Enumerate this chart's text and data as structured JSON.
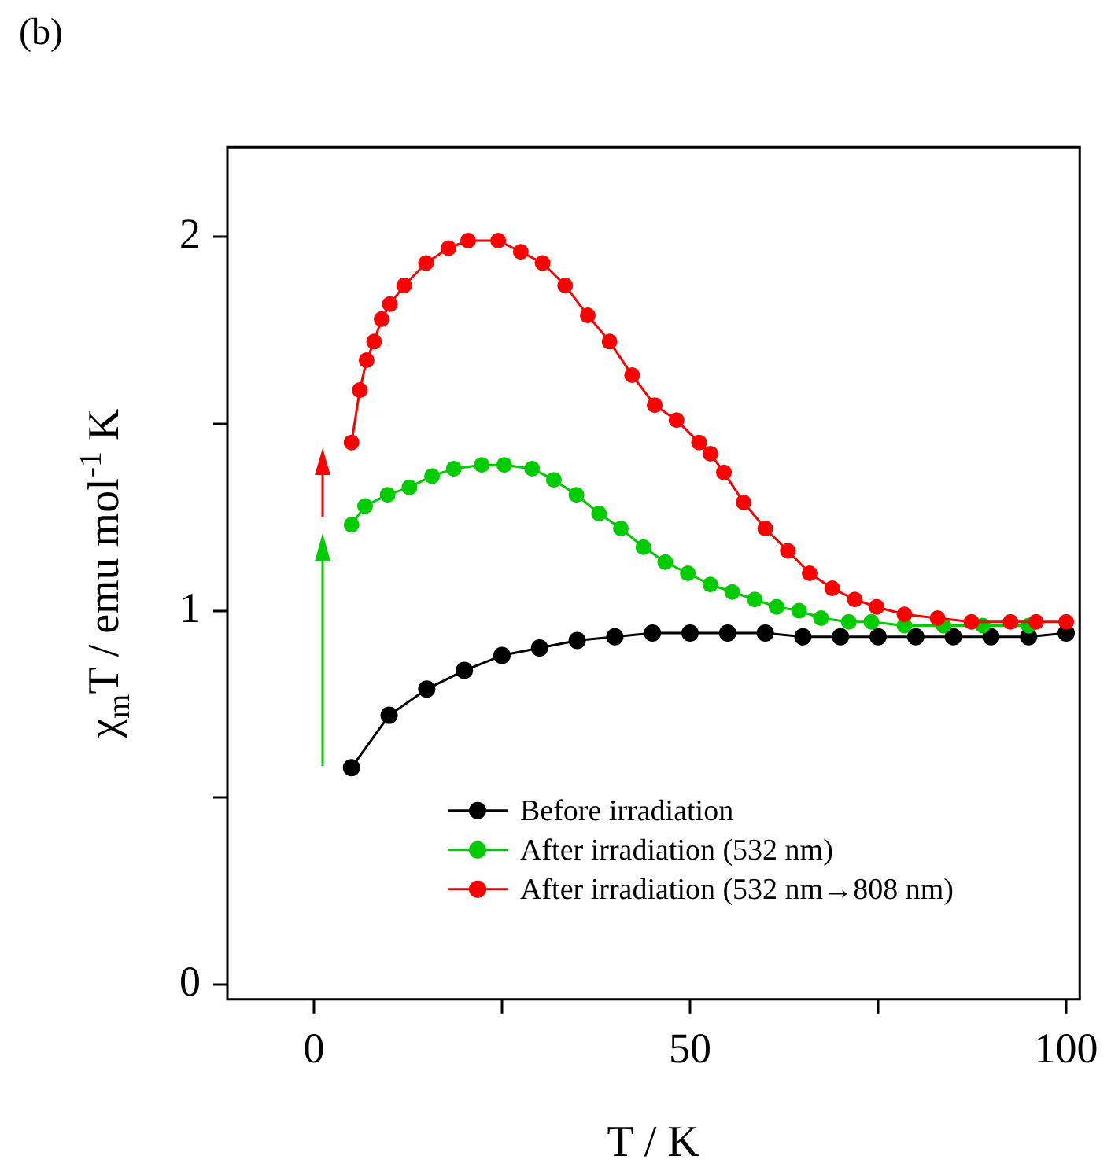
{
  "chart_data": {
    "type": "line",
    "title": "(b)",
    "xlabel": "T / K",
    "ylabel": "χ$_{m}$T / emu mol$^{-1}$ K",
    "marker": "circle",
    "legend": "bottom right",
    "grid": false,
    "xlim": [
      -11.5,
      101.8
    ],
    "xticks": [
      0,
      {
        "value": 25,
        "label": null
      },
      50,
      {
        "value": 75,
        "label": null
      },
      100
    ],
    "ylim": [
      -0.04,
      2.24
    ],
    "yticks": [
      0,
      {
        "value": 0.5,
        "label": null
      },
      1,
      {
        "value": 1.5,
        "label": null
      },
      2
    ],
    "series": [
      {
        "name": "Before irradiation",
        "color": "#000000",
        "x": [
          5,
          10,
          15,
          20,
          25,
          30,
          35,
          40,
          45,
          50,
          55,
          60,
          65,
          70,
          75,
          80,
          85,
          90,
          95,
          100
        ],
        "values": [
          0.58,
          0.72,
          0.79,
          0.84,
          0.88,
          0.9,
          0.92,
          0.93,
          0.94,
          0.94,
          0.94,
          0.94,
          0.93,
          0.93,
          0.93,
          0.93,
          0.93,
          0.93,
          0.93,
          0.94
        ]
      },
      {
        "name": "After irradiation (532 nm)",
        "color": "#00cc00",
        "x": [
          5,
          6.8,
          9.8,
          12.7,
          15.7,
          18.6,
          22.3,
          25.3,
          29,
          31.9,
          34.9,
          37.9,
          40.8,
          43.8,
          46.7,
          49.7,
          52.7,
          55.6,
          58.6,
          61.5,
          64.5,
          67.4,
          71.1,
          74.1,
          78.5,
          83.7,
          88.9,
          95
        ],
        "values": [
          1.23,
          1.28,
          1.31,
          1.33,
          1.36,
          1.38,
          1.39,
          1.39,
          1.38,
          1.35,
          1.31,
          1.26,
          1.22,
          1.17,
          1.13,
          1.1,
          1.07,
          1.05,
          1.03,
          1.01,
          1,
          0.98,
          0.97,
          0.97,
          0.96,
          0.96,
          0.96,
          0.96
        ]
      },
      {
        "name": "After irradiation (532 nm→808 nm)",
        "color": "#ff0000",
        "x": [
          5,
          6.1,
          7,
          8,
          9,
          10.1,
          12,
          14.9,
          17.9,
          20.5,
          24.5,
          27.5,
          30.4,
          33.4,
          36.4,
          39.3,
          42.3,
          45.3,
          48.2,
          51.2,
          52.7,
          54.5,
          57.1,
          60,
          63,
          65.9,
          68.9,
          71.9,
          74.8,
          78.5,
          82.9,
          87.4,
          92.6,
          96,
          100
        ],
        "values": [
          1.45,
          1.59,
          1.67,
          1.72,
          1.78,
          1.82,
          1.87,
          1.93,
          1.97,
          1.99,
          1.99,
          1.96,
          1.93,
          1.87,
          1.79,
          1.72,
          1.63,
          1.55,
          1.51,
          1.45,
          1.42,
          1.37,
          1.29,
          1.22,
          1.16,
          1.1,
          1.06,
          1.03,
          1.01,
          0.99,
          0.98,
          0.97,
          0.97,
          0.97,
          0.97
        ]
      }
    ]
  }
}
